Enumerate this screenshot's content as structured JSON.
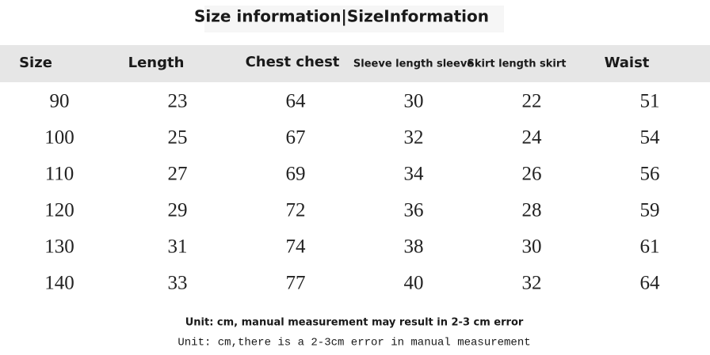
{
  "header": {
    "title": "Size information|SizeInformation"
  },
  "table": {
    "columns": [
      "Size",
      "Length",
      "Chest chest",
      "Sleeve length sleeve",
      "Skirt length skirt",
      "Waist"
    ],
    "rows": [
      [
        90,
        23,
        64,
        30,
        22,
        51
      ],
      [
        100,
        25,
        67,
        32,
        24,
        54
      ],
      [
        110,
        27,
        69,
        34,
        26,
        56
      ],
      [
        120,
        29,
        72,
        36,
        28,
        59
      ],
      [
        130,
        31,
        74,
        38,
        30,
        61
      ],
      [
        140,
        33,
        77,
        40,
        32,
        64
      ]
    ]
  },
  "notes": [
    "Unit: cm, manual measurement may result in 2-3 cm error",
    "Unit: cm,there is a 2-3cm error in manual measurement"
  ]
}
